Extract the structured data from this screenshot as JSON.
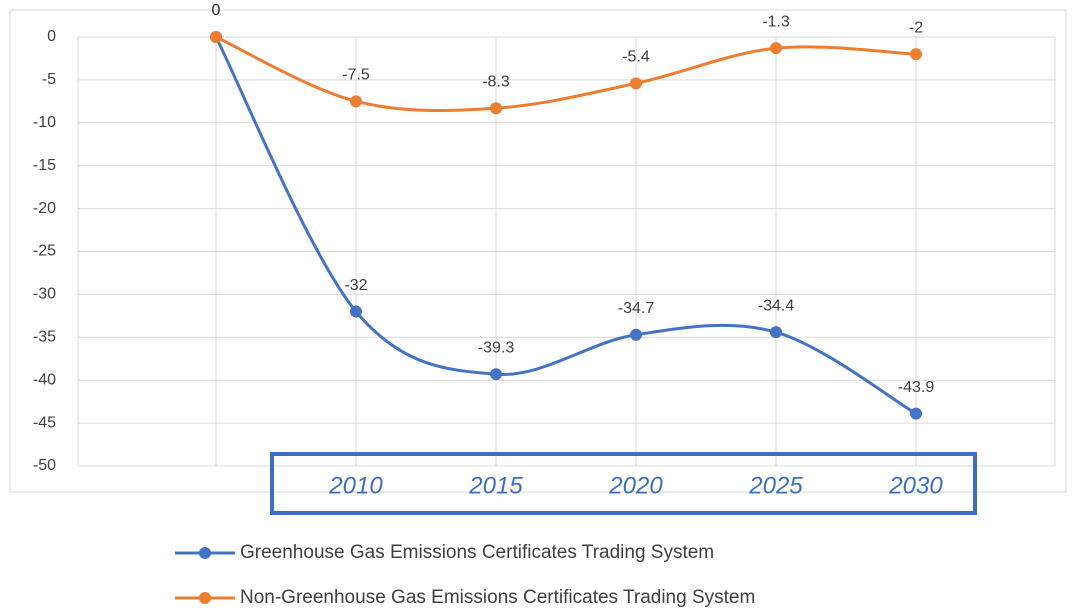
{
  "chart_data": {
    "type": "line",
    "categories": [
      null,
      "2010",
      "2015",
      "2020",
      "2025",
      "2030"
    ],
    "series": [
      {
        "name": "Greenhouse Gas Emissions Certificates Trading System",
        "color": "#4472c4",
        "values": [
          0,
          -32,
          -39.3,
          -34.7,
          -34.4,
          -43.9
        ]
      },
      {
        "name": "Non-Greenhouse Gas Emissions Certificates Trading System",
        "color": "#ed7d31",
        "values": [
          0,
          -7.5,
          -8.3,
          -5.4,
          -1.3,
          -2
        ]
      }
    ],
    "ylim": [
      -50,
      0
    ],
    "yticks": [
      0,
      -5,
      -10,
      -15,
      -20,
      -25,
      -30,
      -35,
      -40,
      -45,
      -50
    ],
    "grid": true,
    "smooth": true
  }
}
